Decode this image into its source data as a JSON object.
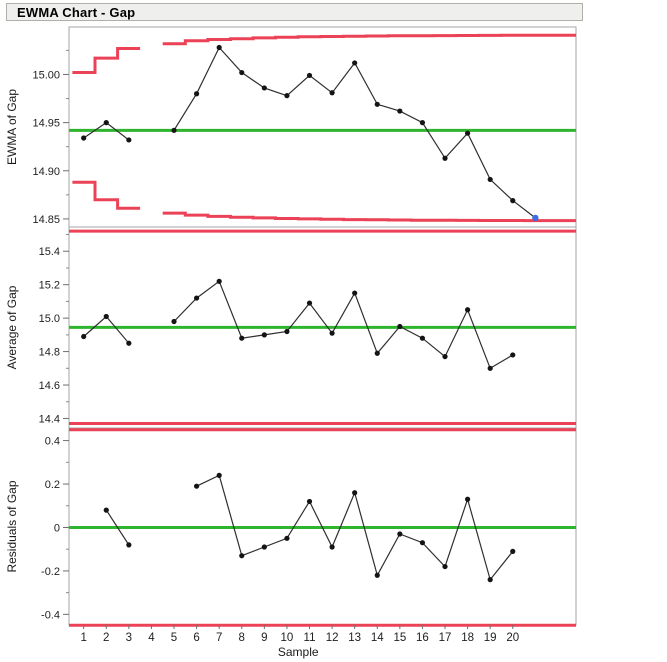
{
  "header": {
    "title": "EWMA Chart - Gap"
  },
  "colors": {
    "limit_red": "#eb4257",
    "center_green": "#2eb52e",
    "series_line": "#2f2f2f",
    "point_black": "#141414",
    "point_blue": "#3e6de2",
    "frame_gray": "#a6a6a6",
    "tick_text": "#212121",
    "titlebar_bg": "#efefed",
    "titlebar_border": "#b0b0ab"
  },
  "x_axis": {
    "label": "Sample",
    "tick_labels": [
      "1",
      "2",
      "3",
      "4",
      "5",
      "6",
      "7",
      "8",
      "9",
      "10",
      "11",
      "12",
      "13",
      "14",
      "15",
      "16",
      "17",
      "18",
      "19",
      "20"
    ],
    "tick_values": [
      1,
      2,
      3,
      4,
      5,
      6,
      7,
      8,
      9,
      10,
      11,
      12,
      13,
      14,
      15,
      16,
      17,
      18,
      19,
      20
    ],
    "lim": [
      0.35,
      22.8
    ]
  },
  "chart_data": [
    {
      "type": "line",
      "ylabel": "EWMA of Gap",
      "ylim": [
        14.8416,
        15.0493
      ],
      "ytick_values": [
        15.0,
        14.95,
        14.9,
        14.85
      ],
      "ytick_labels": [
        "15.00",
        "14.95",
        "14.90",
        "14.85"
      ],
      "yminor_values": [
        15.025,
        14.975,
        14.925,
        14.875
      ],
      "center_value": 14.942,
      "limits": {
        "style": "stepped",
        "ucl_steps": [
          [
            1,
            15.002
          ],
          [
            2,
            15.017
          ],
          [
            3,
            15.027
          ],
          [
            5,
            15.032
          ],
          [
            6,
            15.035
          ],
          [
            7,
            15.0363
          ],
          [
            8,
            15.0372
          ],
          [
            9,
            15.038
          ],
          [
            10,
            15.0386
          ],
          [
            11,
            15.0391
          ],
          [
            12,
            15.0394
          ],
          [
            13,
            15.0397
          ],
          [
            14,
            15.04
          ],
          [
            15,
            15.0402
          ],
          [
            16,
            15.0403
          ],
          [
            17,
            15.0404
          ],
          [
            18,
            15.0405
          ],
          [
            19,
            15.0406
          ],
          [
            20,
            15.0407
          ],
          [
            21,
            15.0408
          ]
        ],
        "lcl_steps": [
          [
            1,
            14.888
          ],
          [
            2,
            14.87
          ],
          [
            3,
            14.861
          ],
          [
            5,
            14.856
          ],
          [
            6,
            14.854
          ],
          [
            7,
            14.8526
          ],
          [
            8,
            14.8517
          ],
          [
            9,
            14.851
          ],
          [
            10,
            14.8504
          ],
          [
            11,
            14.85
          ],
          [
            12,
            14.8496
          ],
          [
            13,
            14.8493
          ],
          [
            14,
            14.8491
          ],
          [
            15,
            14.8489
          ],
          [
            16,
            14.8487
          ],
          [
            17,
            14.8486
          ],
          [
            18,
            14.8485
          ],
          [
            19,
            14.8484
          ],
          [
            20,
            14.8483
          ],
          [
            21,
            14.8482
          ]
        ]
      },
      "points": [
        [
          1,
          14.934
        ],
        [
          2,
          14.95
        ],
        [
          3,
          14.932
        ],
        [
          5,
          14.942
        ],
        [
          6,
          14.98
        ],
        [
          7,
          15.028
        ],
        [
          8,
          15.002
        ],
        [
          9,
          14.986
        ],
        [
          10,
          14.978
        ],
        [
          11,
          14.999
        ],
        [
          12,
          14.981
        ],
        [
          13,
          15.012
        ],
        [
          14,
          14.969
        ],
        [
          15,
          14.962
        ],
        [
          16,
          14.95
        ],
        [
          17,
          14.913
        ],
        [
          18,
          14.939
        ],
        [
          19,
          14.891
        ],
        [
          20,
          14.869
        ],
        [
          21,
          14.851
        ]
      ],
      "highlight_last_point": true
    },
    {
      "type": "line",
      "ylabel": "Average of Gap",
      "ylim": [
        14.343,
        15.545
      ],
      "ytick_values": [
        15.4,
        15.2,
        15.0,
        14.8,
        14.6,
        14.4
      ],
      "ytick_labels": [
        "15.4",
        "15.2",
        "15.0",
        "14.8",
        "14.6",
        "14.4"
      ],
      "yminor_values": [
        15.5,
        15.3,
        15.1,
        14.9,
        14.7,
        14.5
      ],
      "center_value": 14.945,
      "limits": {
        "style": "constant",
        "ucl": 15.52,
        "lcl": 14.37
      },
      "points": [
        [
          1,
          14.89
        ],
        [
          2,
          15.01
        ],
        [
          3,
          14.85
        ],
        [
          5,
          14.98
        ],
        [
          6,
          15.12
        ],
        [
          7,
          15.22
        ],
        [
          8,
          14.88
        ],
        [
          9,
          14.9
        ],
        [
          10,
          14.92
        ],
        [
          11,
          15.09
        ],
        [
          12,
          14.91
        ],
        [
          13,
          15.15
        ],
        [
          14,
          14.79
        ],
        [
          15,
          14.95
        ],
        [
          16,
          14.88
        ],
        [
          17,
          14.77
        ],
        [
          18,
          15.05
        ],
        [
          19,
          14.7
        ],
        [
          20,
          14.78
        ]
      ],
      "highlight_last_point": false
    },
    {
      "type": "line",
      "ylabel": "Residuals of Gap",
      "ylim": [
        -0.449,
        0.458
      ],
      "ytick_values": [
        0.4,
        0.2,
        0,
        -0.2,
        -0.4
      ],
      "ytick_labels": [
        "0.4",
        "0.2",
        "0",
        "-0.2",
        "-0.4"
      ],
      "yminor_values": [
        0.3,
        0.1,
        -0.1,
        -0.3
      ],
      "center_value": 0,
      "limits": {
        "style": "constant",
        "ucl": 0.45,
        "lcl": -0.45
      },
      "points": [
        [
          2,
          0.08
        ],
        [
          3,
          -0.08
        ],
        [
          6,
          0.19
        ],
        [
          7,
          0.24
        ],
        [
          8,
          -0.13
        ],
        [
          9,
          -0.09
        ],
        [
          10,
          -0.05
        ],
        [
          11,
          0.12
        ],
        [
          12,
          -0.09
        ],
        [
          13,
          0.16
        ],
        [
          14,
          -0.22
        ],
        [
          15,
          -0.03
        ],
        [
          16,
          -0.07
        ],
        [
          17,
          -0.18
        ],
        [
          18,
          0.13
        ],
        [
          19,
          -0.24
        ],
        [
          20,
          -0.11
        ]
      ],
      "highlight_last_point": false
    }
  ]
}
